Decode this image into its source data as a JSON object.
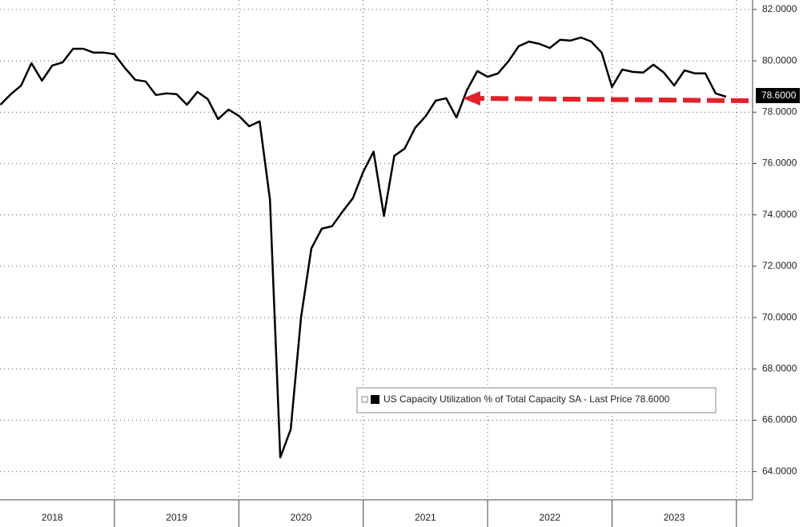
{
  "chart_data": {
    "type": "line",
    "series": [
      {
        "name": "US Capacity Utilization % of Total Capacity SA - Last Price 78.6000",
        "color": "#000000",
        "x": [
          2018.083,
          2018.167,
          2018.25,
          2018.333,
          2018.417,
          2018.5,
          2018.583,
          2018.667,
          2018.75,
          2018.833,
          2018.917,
          2019.0,
          2019.083,
          2019.167,
          2019.25,
          2019.333,
          2019.417,
          2019.5,
          2019.583,
          2019.667,
          2019.75,
          2019.833,
          2019.917,
          2020.0,
          2020.083,
          2020.167,
          2020.25,
          2020.333,
          2020.417,
          2020.5,
          2020.583,
          2020.667,
          2020.75,
          2020.833,
          2020.917,
          2021.0,
          2021.083,
          2021.167,
          2021.25,
          2021.333,
          2021.417,
          2021.5,
          2021.583,
          2021.667,
          2021.75,
          2021.833,
          2021.917,
          2022.0,
          2022.083,
          2022.167,
          2022.25,
          2022.333,
          2022.417,
          2022.5,
          2022.583,
          2022.667,
          2022.75,
          2022.833,
          2022.917,
          2023.0,
          2023.083,
          2023.167,
          2023.25,
          2023.333,
          2023.417,
          2023.5,
          2023.583,
          2023.667,
          2023.75,
          2023.833,
          2023.917
        ],
        "values": [
          78.29,
          78.7,
          79.04,
          79.91,
          79.23,
          79.82,
          79.94,
          80.47,
          80.47,
          80.32,
          80.32,
          80.26,
          79.73,
          79.26,
          79.2,
          78.67,
          78.73,
          78.7,
          78.29,
          78.79,
          78.51,
          77.73,
          78.1,
          77.86,
          77.45,
          77.64,
          74.59,
          64.55,
          65.64,
          70.0,
          72.69,
          73.46,
          73.56,
          74.12,
          74.65,
          75.68,
          76.46,
          73.96,
          76.3,
          76.58,
          77.39,
          77.83,
          78.45,
          78.54,
          77.79,
          78.85,
          79.6,
          79.38,
          79.51,
          79.98,
          80.57,
          80.75,
          80.66,
          80.5,
          80.82,
          80.79,
          80.91,
          80.75,
          80.32,
          78.98,
          79.66,
          79.57,
          79.54,
          79.85,
          79.54,
          79.04,
          79.63,
          79.51,
          79.51,
          78.73,
          78.6
        ]
      }
    ],
    "last_price_label": "78.6000",
    "xlim": [
      2018.08,
      2024.13
    ],
    "xticks": [
      {
        "value": 2018.5,
        "label": "2018"
      },
      {
        "value": 2019.5,
        "label": "2019"
      },
      {
        "value": 2020.5,
        "label": "2020"
      },
      {
        "value": 2021.5,
        "label": "2021"
      },
      {
        "value": 2022.5,
        "label": "2022"
      },
      {
        "value": 2023.5,
        "label": "2023"
      }
    ],
    "ylim": [
      62.9,
      82.37
    ],
    "yticks": [
      {
        "value": 64,
        "label": "64.0000"
      },
      {
        "value": 66,
        "label": "66.0000"
      },
      {
        "value": 68,
        "label": "68.0000"
      },
      {
        "value": 70,
        "label": "70.0000"
      },
      {
        "value": 72,
        "label": "72.0000"
      },
      {
        "value": 74,
        "label": "74.0000"
      },
      {
        "value": 76,
        "label": "76.0000"
      },
      {
        "value": 78,
        "label": "78.0000"
      },
      {
        "value": 80,
        "label": "80.0000"
      },
      {
        "value": 82,
        "label": "82.0000"
      }
    ],
    "grid": true
  }
}
